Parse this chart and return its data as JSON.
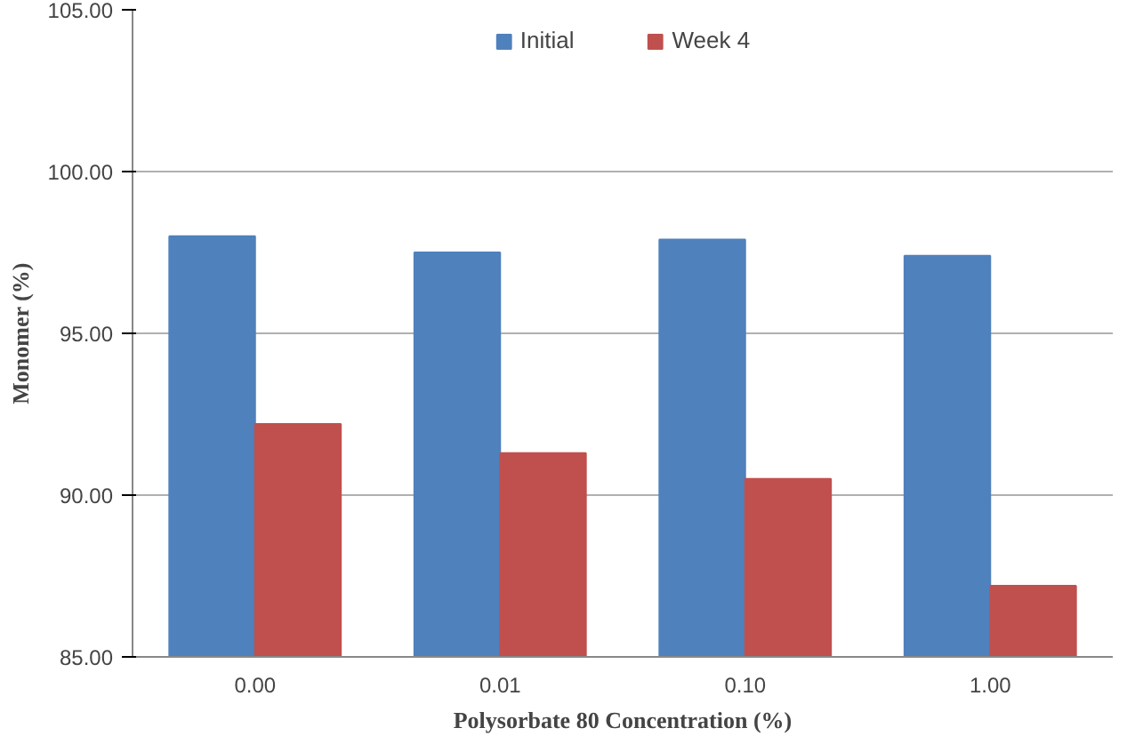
{
  "chart_data": {
    "type": "bar",
    "xlabel": "Polysorbate 80 Concentration (%)",
    "ylabel": "Monomer (%)",
    "categories": [
      "0.00",
      "0.01",
      "0.10",
      "1.00"
    ],
    "series": [
      {
        "name": "Initial",
        "color": "#4f81bd",
        "values": [
          98.0,
          97.5,
          97.9,
          97.4
        ]
      },
      {
        "name": "Week 4",
        "color": "#c0504d",
        "values": [
          92.2,
          91.3,
          90.5,
          87.2
        ]
      }
    ],
    "ylim": [
      85,
      105
    ],
    "yticks": [
      {
        "value": 85,
        "label": "85.00"
      },
      {
        "value": 90,
        "label": "90.00"
      },
      {
        "value": 95,
        "label": "95.00"
      },
      {
        "value": 100,
        "label": "100.00"
      },
      {
        "value": 105,
        "label": "105.00"
      }
    ],
    "grid": "y",
    "legend": "top"
  }
}
